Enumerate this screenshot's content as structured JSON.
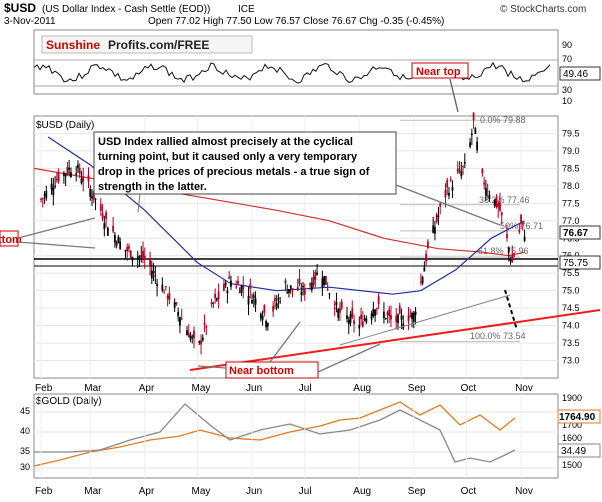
{
  "header": {
    "symbol": "$USD",
    "name": "(US Dollar Index - Cash Settle (EOD))",
    "exchange": "ICE",
    "watermark": "© StockCharts.com",
    "date": "3-Nov-2011",
    "ohlc": "Open 77.02  High 77.50  Low 76.57  Close 76.67  Chg -0.35 (-0.45%)"
  },
  "brand": {
    "part1": "Sunshine",
    "part2": "Profits.com/FREE",
    "colors": {
      "red": "#cc0000",
      "dark": "#222222"
    }
  },
  "rsi_panel": {
    "ticks": [
      "90",
      "70",
      "50",
      "30",
      "10"
    ],
    "last_value": "49.46",
    "annotation": "Near top"
  },
  "main_panel": {
    "title": "$USD (Daily)",
    "last_price": "76.67",
    "last_label2": "75.75",
    "fib_labels": [
      "0.0% 79.88",
      "38.2% 77.46",
      "50% 76.71",
      "61.8% 75.96",
      "100.0% 73.54"
    ],
    "comment": "USD Index rallied almost precisely at the cyclical turning point, but it caused only a very temporary drop in the prices of precious metals - a true sign of strength in the latter.",
    "comment_lines": [
      "USD Index rallied almost precisely at the cyclical",
      "turning point, but it caused only a very temporary",
      "drop in the prices of precious metals - a true sign of",
      "strength in the latter."
    ],
    "annotation_bottom": "Near bottom",
    "annotation_left": "ttom"
  },
  "gold_panel": {
    "title": "$GOLD (Daily)",
    "last_value": "1764.90",
    "rsi_last": "34.49",
    "left_ticks": [
      "45",
      "40",
      "35",
      "30"
    ],
    "right_ticks": [
      "1900",
      "1800",
      "1700",
      "1600",
      "1500"
    ]
  },
  "x_axis": {
    "months": [
      "Feb",
      "Mar",
      "Apr",
      "May",
      "Jun",
      "Jul",
      "Aug",
      "Sep",
      "Oct",
      "Nov"
    ]
  },
  "chart_data": {
    "type": "line",
    "title": "$USD (US Dollar Index - Cash Settle (EOD)) ICE",
    "xlabel": "",
    "ylabel": "",
    "ylim": [
      72.5,
      80.0
    ],
    "y_ticks": [
      73.0,
      73.5,
      74.0,
      74.5,
      75.0,
      75.5,
      76.0,
      76.5,
      77.0,
      77.5,
      78.0,
      78.5,
      79.0,
      79.5
    ],
    "x": [
      "2011-02-01",
      "2011-02-10",
      "2011-02-20",
      "2011-03-01",
      "2011-03-10",
      "2011-03-20",
      "2011-04-01",
      "2011-04-10",
      "2011-04-20",
      "2011-05-01",
      "2011-05-10",
      "2011-05-20",
      "2011-06-01",
      "2011-06-10",
      "2011-06-20",
      "2011-07-01",
      "2011-07-10",
      "2011-07-20",
      "2011-08-01",
      "2011-08-10",
      "2011-08-20",
      "2011-09-01",
      "2011-09-10",
      "2011-09-20",
      "2011-10-01",
      "2011-10-05",
      "2011-10-10",
      "2011-10-20",
      "2011-10-27",
      "2011-11-01",
      "2011-11-03"
    ],
    "series": [
      {
        "values": [
          77.6,
          78.2,
          78.6,
          77.9,
          77.0,
          76.2,
          75.9,
          75.2,
          74.4,
          73.3,
          74.6,
          75.3,
          74.9,
          74.2,
          75.1,
          75.0,
          75.6,
          74.4,
          74.0,
          74.6,
          74.1,
          74.3,
          76.4,
          77.9,
          78.6,
          79.8,
          78.2,
          77.3,
          75.8,
          76.9,
          76.67
        ]
      }
    ],
    "moving_averages": [
      "blue",
      "red"
    ],
    "fib_levels": [
      79.88,
      77.46,
      76.71,
      75.96,
      73.54
    ],
    "horizontal_lines": [
      75.75,
      75.55
    ]
  }
}
